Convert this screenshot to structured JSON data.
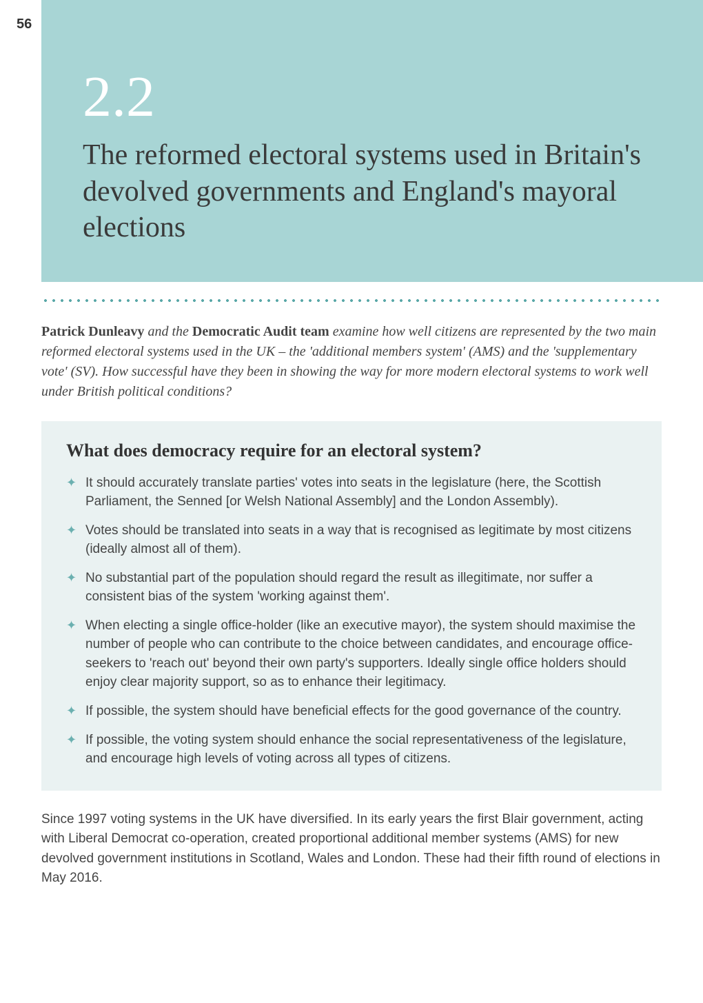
{
  "page_number": "56",
  "hero": {
    "section_number": "2.2",
    "title": "The reformed electoral systems used in Britain's devolved governments and England's mayoral elections",
    "bg_color": "#a8d5d5",
    "number_color": "#ffffff",
    "title_color": "#3a3a3a"
  },
  "divider": {
    "dot_color": "#5aa8a8"
  },
  "intro": {
    "author_bold": "Patrick Dunleavy",
    "connector1": " and the ",
    "team_bold": "Democratic Audit team",
    "rest": " examine how well citizens are represented by the two main reformed electoral systems used in the UK – the 'additional members system' (AMS) and the 'supplementary vote' (SV). How successful have they been in showing the way for more modern electoral systems to work well under British political conditions?"
  },
  "callout": {
    "heading": "What does democracy require for an electoral system?",
    "bg_color": "#eaf2f2",
    "bullet_color": "#6bb0b0",
    "items": [
      "It should accurately translate parties' votes into seats in the legislature (here, the Scottish Parliament, the Senned [or Welsh National Assembly] and the London Assembly).",
      "Votes should be translated into seats in a way that is recognised as legitimate by most citizens (ideally almost all of them).",
      "No substantial part of the population should regard the result as illegitimate, nor suffer a consistent bias of the system 'working against them'.",
      "When electing a single office-holder (like an executive mayor), the system should maximise the number of people who can contribute to the choice between candidates, and encourage office-seekers to 'reach out' beyond their own party's supporters. Ideally single office holders should enjoy clear majority support, so as to enhance their legitimacy.",
      "If possible, the system should have beneficial effects for the good governance of the country.",
      "If possible, the voting system should enhance the social representativeness of the legislature, and encourage high levels of voting across all types of citizens."
    ]
  },
  "body": {
    "para1": "Since 1997 voting systems in the UK have diversified. In its early years the first Blair government, acting with Liberal Democrat co-operation, created proportional additional member systems (AMS) for new devolved government institutions in Scotland, Wales and London. These had their fifth round of elections in May 2016."
  },
  "typography": {
    "serif_family": "Georgia",
    "sans_family": "Arial",
    "section_number_fontsize": 84,
    "title_fontsize": 42,
    "intro_fontsize": 20,
    "callout_heading_fontsize": 26,
    "bullet_fontsize": 19,
    "body_fontsize": 19
  },
  "colors": {
    "page_bg": "#ffffff",
    "text_primary": "#444444",
    "text_heading": "#333333"
  }
}
